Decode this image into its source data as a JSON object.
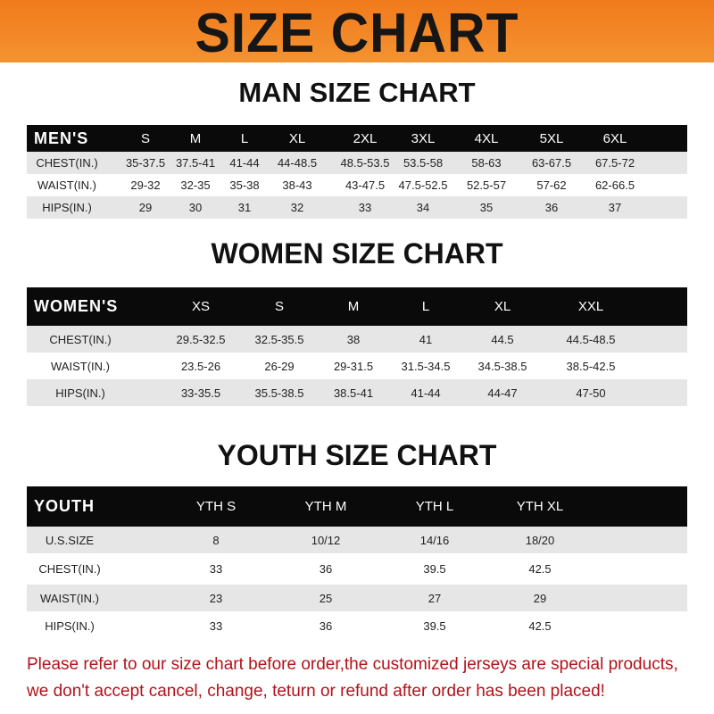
{
  "banner": {
    "title": "SIZE CHART",
    "color": "#f07a1c"
  },
  "men": {
    "title": "MAN SIZE CHART",
    "header": [
      "MEN'S",
      "S",
      "M",
      "L",
      "XL",
      "2XL",
      "3XL",
      "4XL",
      "5XL",
      "6XL"
    ],
    "rows": [
      [
        "CHEST(IN.)",
        "35-37.5",
        "37.5-41",
        "41-44",
        "44-48.5",
        "48.5-53.5",
        "53.5-58",
        "58-63",
        "63-67.5",
        "67.5-72"
      ],
      [
        "WAIST(IN.)",
        "29-32",
        "32-35",
        "35-38",
        "38-43",
        "43-47.5",
        "47.5-52.5",
        "52.5-57",
        "57-62",
        "62-66.5"
      ],
      [
        "HIPS(IN.)",
        "29",
        "30",
        "31",
        "32",
        "33",
        "34",
        "35",
        "36",
        "37"
      ]
    ]
  },
  "women": {
    "title": "WOMEN SIZE CHART",
    "header": [
      "WOMEN'S",
      "XS",
      "S",
      "M",
      "L",
      "XL",
      "XXL"
    ],
    "rows": [
      [
        "CHEST(IN.)",
        "29.5-32.5",
        "32.5-35.5",
        "38",
        "41",
        "44.5",
        "44.5-48.5"
      ],
      [
        "WAIST(IN.)",
        "23.5-26",
        "26-29",
        "29-31.5",
        "31.5-34.5",
        "34.5-38.5",
        "38.5-42.5"
      ],
      [
        "HIPS(IN.)",
        "33-35.5",
        "35.5-38.5",
        "38.5-41",
        "41-44",
        "44-47",
        "47-50"
      ]
    ]
  },
  "youth": {
    "title": "YOUTH SIZE CHART",
    "header": [
      "YOUTH",
      "YTH S",
      "YTH M",
      "YTH L",
      "YTH XL"
    ],
    "rows": [
      [
        "U.S.SIZE",
        "8",
        "10/12",
        "14/16",
        "18/20"
      ],
      [
        "CHEST(IN.)",
        "33",
        "36",
        "39.5",
        "42.5"
      ],
      [
        "WAIST(IN.)",
        "23",
        "25",
        "27",
        "29"
      ],
      [
        "HIPS(IN.)",
        "33",
        "36",
        "39.5",
        "42.5"
      ]
    ]
  },
  "notice": {
    "line1": "Please refer to our size chart before order,the customized jerseys are special products,",
    "line2": "we don't accept cancel, change, teturn or refund after order has been placed!",
    "color": "#b4111a"
  }
}
